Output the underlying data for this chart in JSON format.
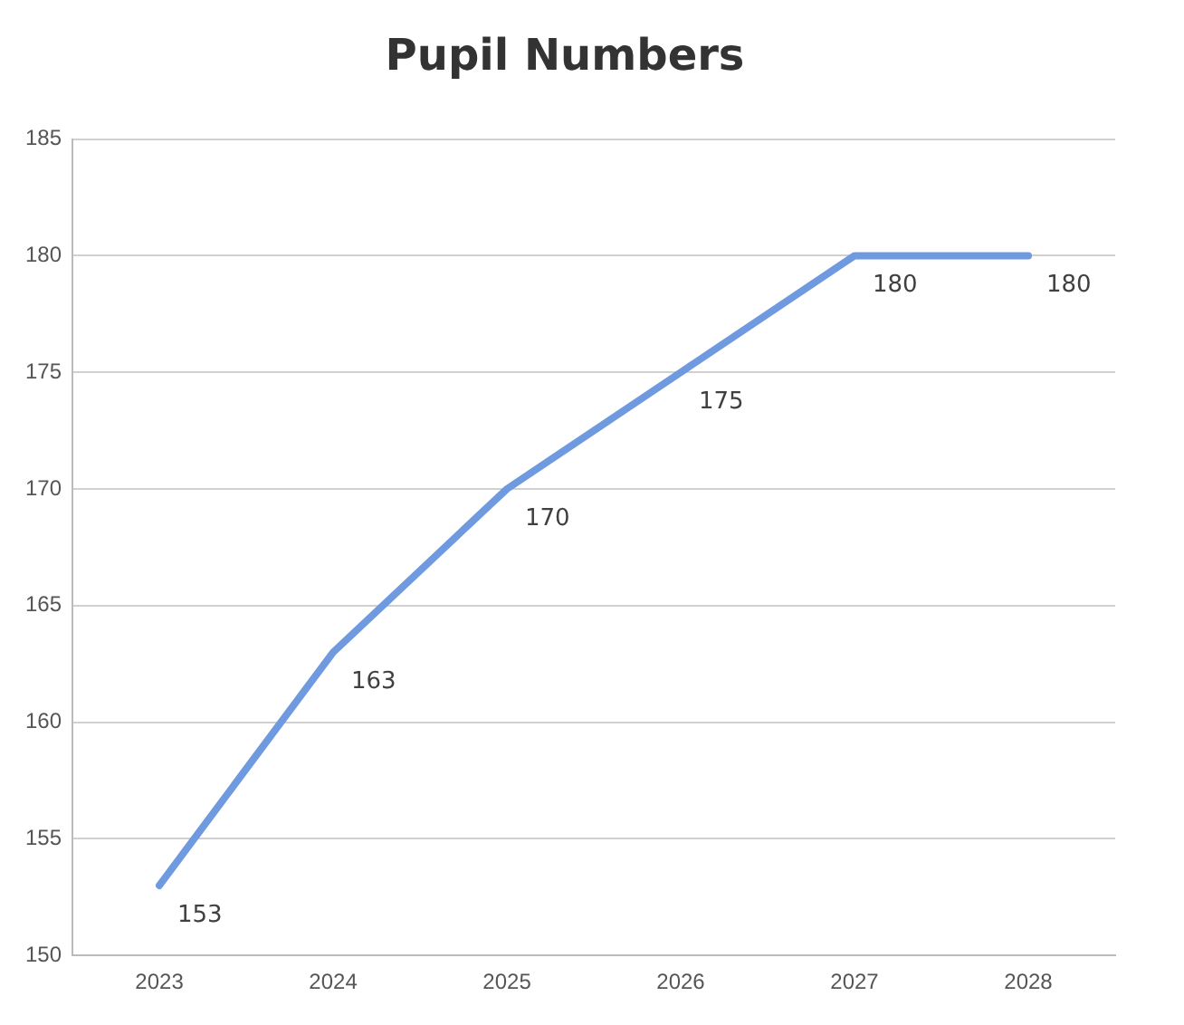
{
  "chart_data": {
    "type": "line",
    "title": "Pupil Numbers",
    "categories": [
      "2023",
      "2024",
      "2025",
      "2026",
      "2027",
      "2028"
    ],
    "series": [
      {
        "color": "#6f9ae0",
        "values": [
          153,
          163,
          170,
          175,
          180,
          180
        ]
      }
    ],
    "ylim": [
      150,
      185
    ],
    "yticks": [
      150,
      155,
      160,
      165,
      170,
      175,
      180,
      185
    ],
    "grid": "y",
    "data_labels": true,
    "marker": "none",
    "line_style": "solid"
  }
}
